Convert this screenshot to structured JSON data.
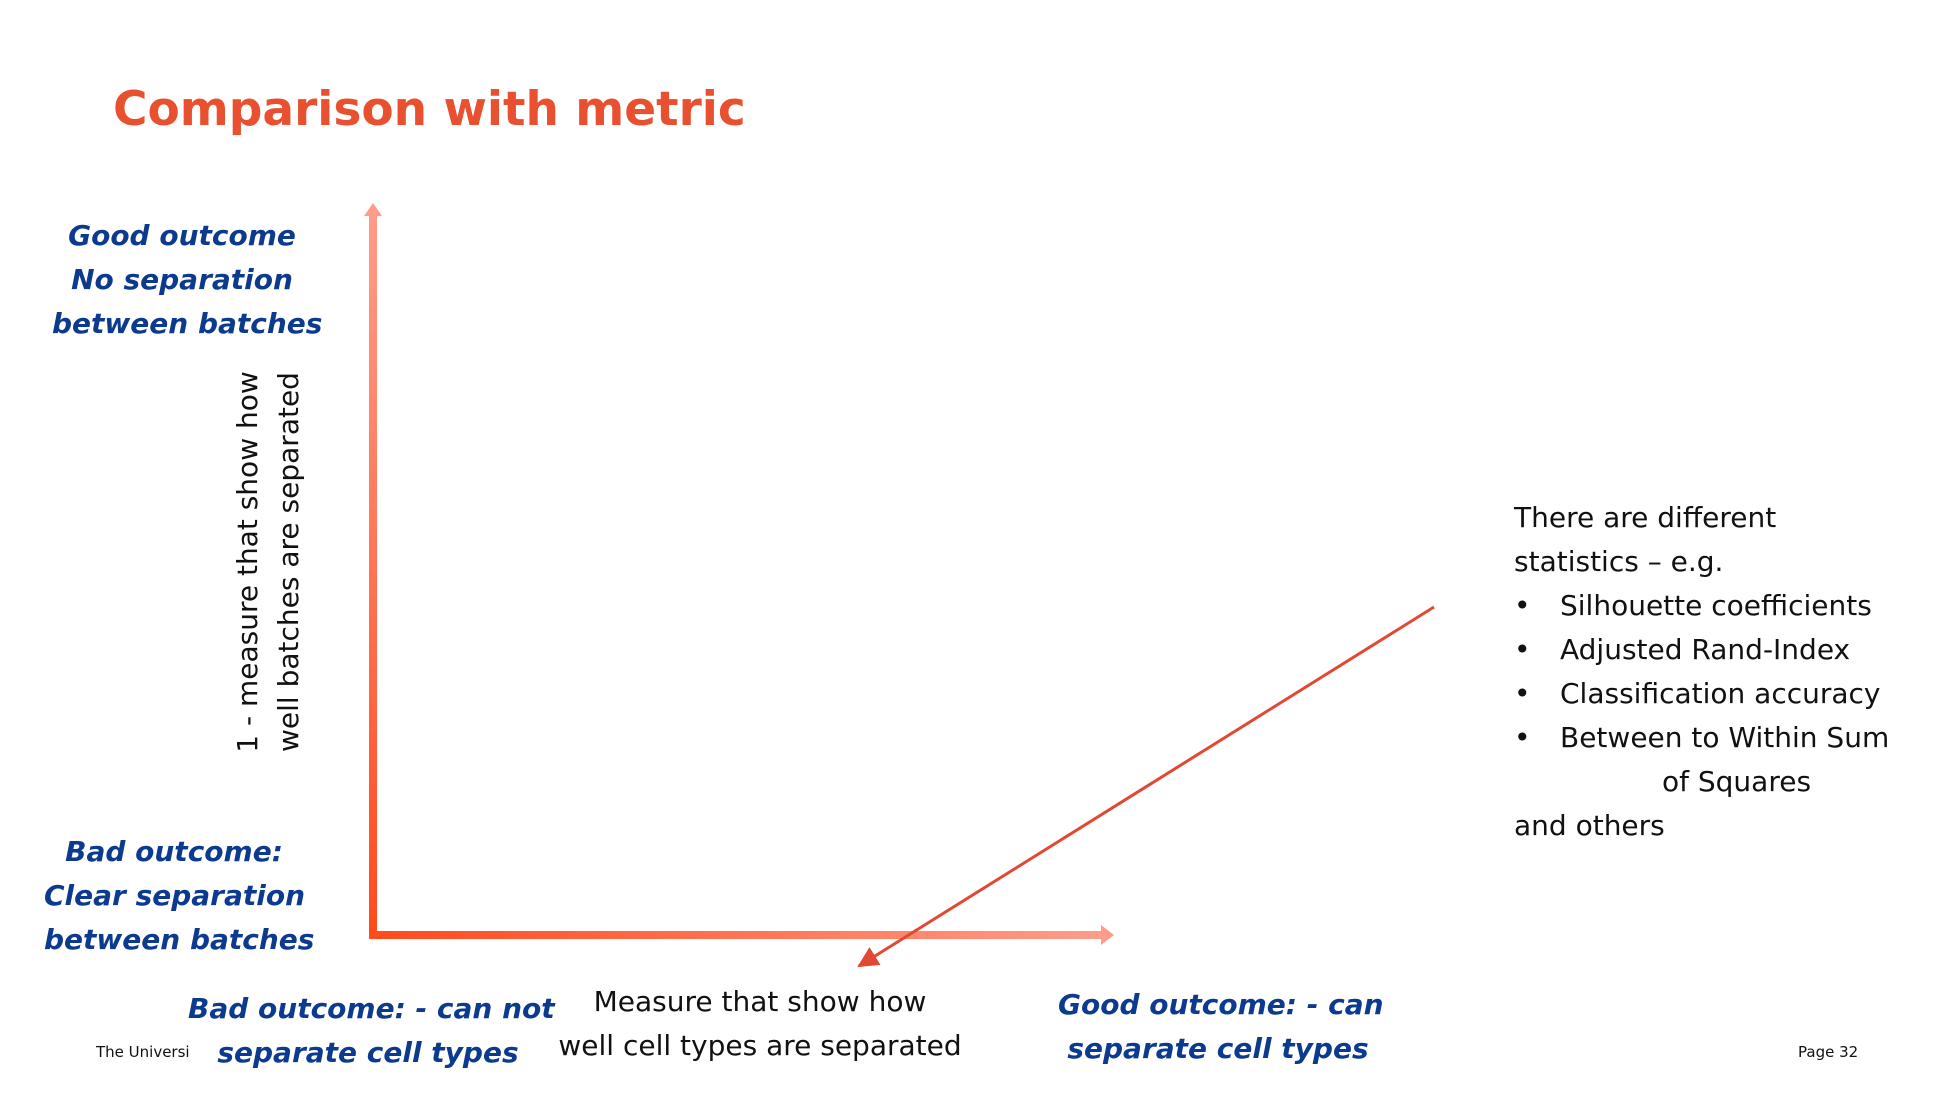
{
  "title": "Comparison with metric",
  "y_axis": {
    "top_label": [
      "Good outcome",
      "No separation",
      "between batches"
    ],
    "bottom_label": [
      "Bad outcome:",
      "Clear separation",
      "between batches"
    ],
    "axis_title": [
      "1 - measure that show how",
      "well batches are separated"
    ]
  },
  "x_axis": {
    "left_label": [
      "Bad outcome: - can not",
      "separate cell types"
    ],
    "right_label": [
      "Good outcome: - can",
      "separate cell types"
    ],
    "axis_title": [
      "Measure that show how",
      "well cell types are separated"
    ]
  },
  "stats": {
    "intro": [
      "There are different",
      "statistics – e.g."
    ],
    "bullets": [
      "Silhouette coefficients",
      "Adjusted Rand-Index",
      "Classification accuracy",
      "Between to Within Sum"
    ],
    "continuation": "of Squares",
    "outro": "and others",
    "bullet_glyph": "•"
  },
  "footer": {
    "left": "The Universi",
    "right": "Page 32"
  },
  "colors": {
    "title": "#e8502f",
    "label_blue": "#0c3a8f",
    "axis_dark": "#ff4a1c",
    "axis_light": "#ff9c8a",
    "pointer": "#e04a33"
  }
}
